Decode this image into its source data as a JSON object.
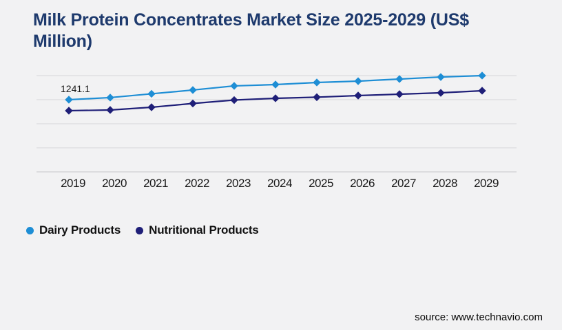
{
  "page": {
    "background_color": "#f2f2f3",
    "source": "source: www.technavio.com"
  },
  "chart_data": {
    "type": "line",
    "title": "Milk Protein Concentrates Market Size 2025-2029 (US$ Million)",
    "title_color": "#1e3a6d",
    "xlabel": "",
    "ylabel": "",
    "categories": [
      "2019",
      "2020",
      "2021",
      "2022",
      "2023",
      "2024",
      "2025",
      "2026",
      "2027",
      "2028",
      "2029"
    ],
    "series": [
      {
        "name": "Dairy Products",
        "color": "#1e8ed5",
        "marker": "diamond",
        "values": [
          1241.1,
          1277,
          1342,
          1407,
          1478,
          1501,
          1537,
          1560,
          1596,
          1631,
          1655
        ]
      },
      {
        "name": "Nutritional Products",
        "color": "#1f1f78",
        "marker": "diamond",
        "values": [
          1052,
          1064,
          1111,
          1176,
          1235,
          1265,
          1284,
          1312,
          1336,
          1359,
          1395
        ]
      }
    ],
    "data_labels": [
      {
        "series": "Dairy Products",
        "category": "2019",
        "text": "1241.1"
      }
    ],
    "ylim": [
      0,
      1654.8
    ],
    "y_axis_labels_visible": false,
    "gridlines": "horizontal",
    "gridline_count": 5,
    "gridline_color": "#d7d7d9",
    "axis_line_color": "#c7c7c9",
    "legend_position": "bottom-left"
  }
}
